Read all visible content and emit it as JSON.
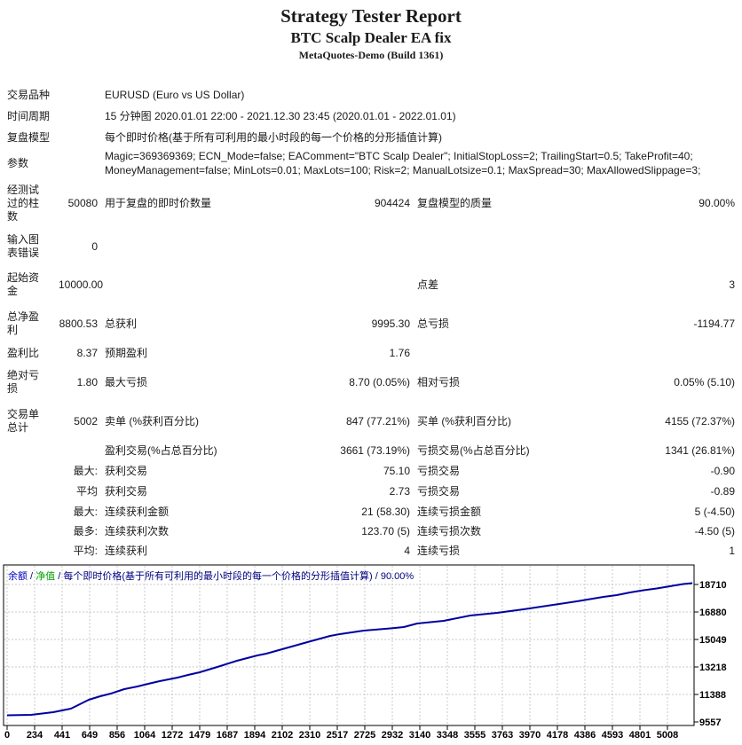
{
  "header": {
    "title": "Strategy Tester Report",
    "subtitle": "BTC Scalp Dealer EA fix",
    "server": "MetaQuotes-Demo (Build 1361)"
  },
  "table": {
    "rows": [
      {
        "label": "交易品种",
        "l2": "EURUSD (Euro vs US Dollar)"
      },
      {
        "label": "时间周期",
        "l2": "15 分钟图 2020.01.01 22:00 - 2021.12.30 23:45 (2020.01.01 - 2022.01.01)"
      },
      {
        "label": "复盘模型",
        "l2": "每个即时价格(基于所有可利用的最小时段的每一个价格的分形插值计算)"
      },
      {
        "label": "参数",
        "l2": "Magic=369369369; ECN_Mode=false; EAComment=\"BTC Scalp Dealer\"; InitialStopLoss=2; TrailingStart=0.5; TakeProfit=40; MoneyManagement=false; MinLots=0.01; MaxLots=100; Risk=2; ManualLotsize=0.1; MaxSpread=30; MaxAllowedSlippage=3;"
      },
      {
        "label": "经测试\n过的柱\n数",
        "v1": "50080",
        "l2": "用于复盘的即时价数量",
        "v2": "904424",
        "l3": "复盘模型的质量",
        "v3": "90.00%"
      },
      {
        "label": "输入图\n表错误",
        "v1": "0"
      },
      {
        "label": "起始资\n金",
        "v1": "10000.00",
        "l3": "点差",
        "v3": "3"
      },
      {
        "label": "总净盈\n利",
        "v1": "8800.53",
        "l2": "总获利",
        "v2": "9995.30",
        "l3": "总亏损",
        "v3": "-1194.77"
      },
      {
        "label": "盈利比",
        "v1": "8.37",
        "l2": "预期盈利",
        "v2": "1.76"
      },
      {
        "label": "绝对亏\n损",
        "v1": "1.80",
        "l2": "最大亏损",
        "v2": "8.70 (0.05%)",
        "l3": "相对亏损",
        "v3": "0.05% (5.10)"
      },
      {
        "label": "交易单\n总计",
        "v1": "5002",
        "l2": "卖单 (%获利百分比)",
        "v2": "847 (77.21%)",
        "l3": "买单 (%获利百分比)",
        "v3": "4155 (72.37%)"
      },
      {
        "l2": "盈利交易(%占总百分比)",
        "v2": "3661 (73.19%)",
        "l3": "亏损交易(%占总百分比)",
        "v3": "1341 (26.81%)"
      },
      {
        "v1": "最大:",
        "l2": "获利交易",
        "v2": "75.10",
        "l3": "亏损交易",
        "v3": "-0.90"
      },
      {
        "v1": "平均",
        "l2": "获利交易",
        "v2": "2.73",
        "l3": "亏损交易",
        "v3": "-0.89"
      },
      {
        "v1": "最大:",
        "l2": "连续获利金额",
        "v2": "21 (58.30)",
        "l3": "连续亏损金额",
        "v3": "5 (-4.50)"
      },
      {
        "v1": "最多:",
        "l2": "连续获利次数",
        "v2": "123.70 (5)",
        "l3": "连续亏损次数",
        "v3": "-4.50 (5)"
      },
      {
        "v1": "平均:",
        "l2": "连续获利",
        "v2": "4",
        "l3": "连续亏损",
        "v3": "1"
      }
    ]
  },
  "chart_data": {
    "type": "line",
    "legend": {
      "balance": "余额",
      "sep1": " / ",
      "equity": "净值",
      "rest": " / 每个即时价格(基于所有可利用的最小时段的每一个价格的分形插值计算) / 90.00%"
    },
    "x_ticks": [
      0,
      234,
      441,
      649,
      856,
      1064,
      1272,
      1479,
      1687,
      1894,
      2102,
      2310,
      2517,
      2725,
      2932,
      3140,
      3348,
      3555,
      3763,
      3970,
      4178,
      4386,
      4593,
      4801,
      5008
    ],
    "y_ticks": [
      18710,
      16880,
      15049,
      13218,
      11388,
      9557
    ],
    "xlim": [
      0,
      5008
    ],
    "ylim": [
      9557,
      18710
    ],
    "grid": true,
    "legend_position": "top-left",
    "xlabel": "",
    "ylabel": "",
    "series": [
      {
        "name": "余额 (Balance)",
        "points": [
          [
            0,
            10000
          ],
          [
            175,
            10030
          ],
          [
            337,
            10207
          ],
          [
            466,
            10443
          ],
          [
            531,
            10738
          ],
          [
            596,
            11034
          ],
          [
            680,
            11270
          ],
          [
            758,
            11447
          ],
          [
            855,
            11742
          ],
          [
            952,
            11920
          ],
          [
            1030,
            12097
          ],
          [
            1114,
            12274
          ],
          [
            1244,
            12510
          ],
          [
            1321,
            12687
          ],
          [
            1406,
            12864
          ],
          [
            1535,
            13219
          ],
          [
            1678,
            13632
          ],
          [
            1827,
            13987
          ],
          [
            1892,
            14105
          ],
          [
            2054,
            14518
          ],
          [
            2216,
            14931
          ],
          [
            2358,
            15286
          ],
          [
            2429,
            15404
          ],
          [
            2604,
            15640
          ],
          [
            2799,
            15787
          ],
          [
            2896,
            15876
          ],
          [
            2993,
            16112
          ],
          [
            3187,
            16289
          ],
          [
            3381,
            16644
          ],
          [
            3576,
            16821
          ],
          [
            3770,
            17057
          ],
          [
            3964,
            17323
          ],
          [
            4159,
            17589
          ],
          [
            4353,
            17884
          ],
          [
            4450,
            18002
          ],
          [
            4547,
            18179
          ],
          [
            4645,
            18327
          ],
          [
            4742,
            18445
          ],
          [
            4839,
            18592
          ],
          [
            4936,
            18740
          ],
          [
            5002,
            18800
          ]
        ]
      }
    ],
    "colors": {
      "balance_line": "#0000A0",
      "balance_label": "#0000C0",
      "equity_label": "#00A000",
      "legend_text": "#000080",
      "grid": "#C9C9C9",
      "border": "#000000"
    }
  }
}
